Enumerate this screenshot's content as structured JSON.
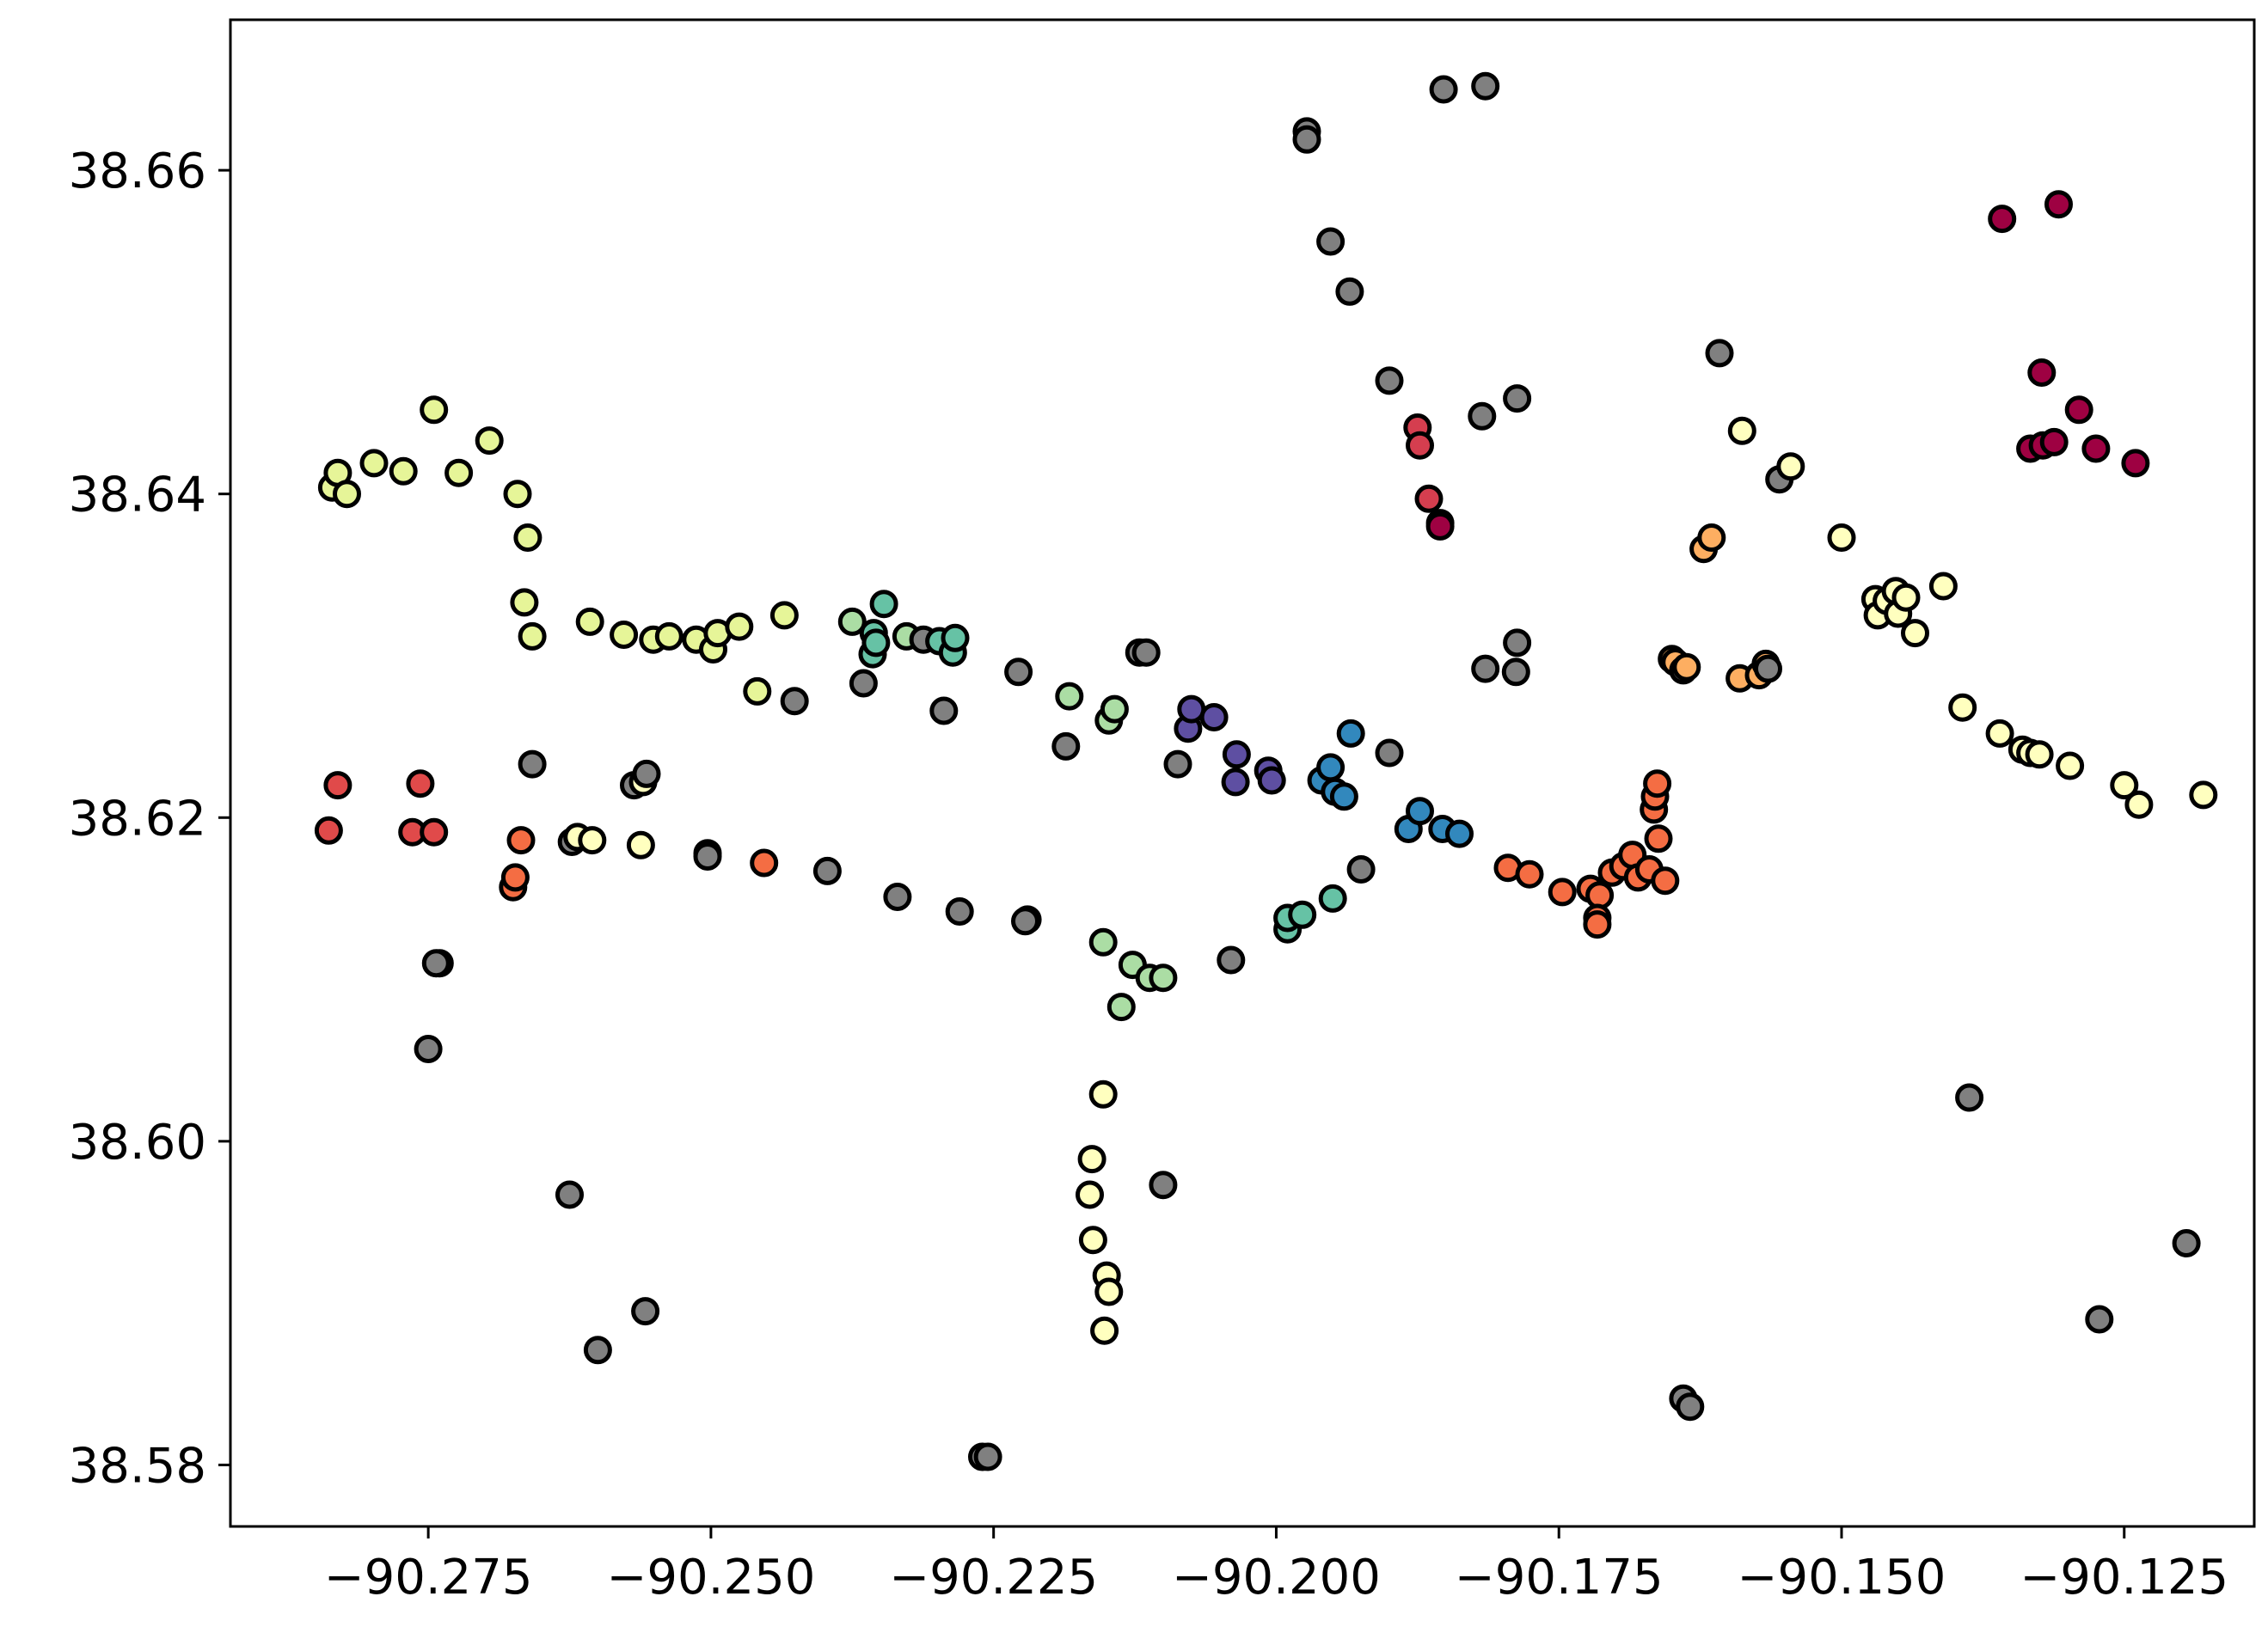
{
  "chart_data": {
    "type": "scatter",
    "title": "",
    "xlabel": "",
    "ylabel": "",
    "xlim": [
      -90.2925,
      -90.1135
    ],
    "ylim": [
      38.5762,
      38.6693
    ],
    "xticks": [
      -90.275,
      -90.25,
      -90.225,
      -90.2,
      -90.175,
      -90.15,
      -90.125
    ],
    "xtick_labels": [
      "−90.275",
      "−90.250",
      "−90.225",
      "−90.200",
      "−90.175",
      "−90.150",
      "−90.125"
    ],
    "yticks": [
      38.58,
      38.6,
      38.62,
      38.64,
      38.66
    ],
    "ytick_labels": [
      "38.58",
      "38.60",
      "38.62",
      "38.64",
      "38.66"
    ],
    "grid": false,
    "legend": "none",
    "marker_edge_color": "#000000",
    "colors": {
      "gray": "#808080",
      "darkred": "#9e0142",
      "crimson": "#d53e4f",
      "red": "#e04a4a",
      "orange": "#f46d43",
      "lightorange": "#fdae61",
      "paleyellow": "#fee08b",
      "cream": "#ffffbf",
      "yellowgreen": "#e6f598",
      "lightgreen": "#abdda4",
      "teal": "#66c2a5",
      "blue": "#3288bd",
      "indigo": "#5e4fa2"
    },
    "points": [
      {
        "x": -90.2835,
        "y": 38.6404,
        "c": "yellowgreen"
      },
      {
        "x": -90.283,
        "y": 38.6413,
        "c": "yellowgreen"
      },
      {
        "x": -90.2822,
        "y": 38.64,
        "c": "yellowgreen"
      },
      {
        "x": -90.2798,
        "y": 38.6419,
        "c": "yellowgreen"
      },
      {
        "x": -90.2772,
        "y": 38.6414,
        "c": "yellowgreen"
      },
      {
        "x": -90.2745,
        "y": 38.6452,
        "c": "yellowgreen"
      },
      {
        "x": -90.2723,
        "y": 38.6413,
        "c": "yellowgreen"
      },
      {
        "x": -90.2696,
        "y": 38.6433,
        "c": "yellowgreen"
      },
      {
        "x": -90.2671,
        "y": 38.64,
        "c": "yellowgreen"
      },
      {
        "x": -90.2665,
        "y": 38.6333,
        "c": "yellowgreen"
      },
      {
        "x": -90.2662,
        "y": 38.6373,
        "c": "yellowgreen"
      },
      {
        "x": -90.2658,
        "y": 38.6312,
        "c": "yellowgreen"
      },
      {
        "x": -90.2607,
        "y": 38.6321,
        "c": "yellowgreen"
      },
      {
        "x": -90.2577,
        "y": 38.6313,
        "c": "yellowgreen"
      },
      {
        "x": -90.2551,
        "y": 38.631,
        "c": "yellowgreen"
      },
      {
        "x": -90.2537,
        "y": 38.6312,
        "c": "yellowgreen"
      },
      {
        "x": -90.2513,
        "y": 38.631,
        "c": "yellowgreen"
      },
      {
        "x": -90.2498,
        "y": 38.6304,
        "c": "yellowgreen"
      },
      {
        "x": -90.2494,
        "y": 38.6314,
        "c": "yellowgreen"
      },
      {
        "x": -90.2475,
        "y": 38.6318,
        "c": "yellowgreen"
      },
      {
        "x": -90.2459,
        "y": 38.6278,
        "c": "yellowgreen"
      },
      {
        "x": -90.2435,
        "y": 38.6325,
        "c": "yellowgreen"
      },
      {
        "x": -90.2426,
        "y": 38.6272,
        "c": "gray"
      },
      {
        "x": -90.2375,
        "y": 38.6321,
        "c": "lightgreen"
      },
      {
        "x": -90.2365,
        "y": 38.6283,
        "c": "gray"
      },
      {
        "x": -90.2357,
        "y": 38.6301,
        "c": "teal"
      },
      {
        "x": -90.2356,
        "y": 38.6314,
        "c": "teal"
      },
      {
        "x": -90.2354,
        "y": 38.6308,
        "c": "teal"
      },
      {
        "x": -90.2347,
        "y": 38.6332,
        "c": "teal"
      },
      {
        "x": -90.2327,
        "y": 38.6312,
        "c": "lightgreen"
      },
      {
        "x": -90.2312,
        "y": 38.631,
        "c": "gray"
      },
      {
        "x": -90.2298,
        "y": 38.6309,
        "c": "teal"
      },
      {
        "x": -90.2286,
        "y": 38.6302,
        "c": "teal"
      },
      {
        "x": -90.2284,
        "y": 38.6311,
        "c": "teal"
      },
      {
        "x": -90.2294,
        "y": 38.6266,
        "c": "gray"
      },
      {
        "x": -90.2228,
        "y": 38.629,
        "c": "gray"
      },
      {
        "x": -90.2183,
        "y": 38.6275,
        "c": "lightgreen"
      },
      {
        "x": -90.2186,
        "y": 38.6244,
        "c": "gray"
      },
      {
        "x": -90.2148,
        "y": 38.626,
        "c": "lightgreen"
      },
      {
        "x": -90.2143,
        "y": 38.6267,
        "c": "lightgreen"
      },
      {
        "x": -90.2121,
        "y": 38.6302,
        "c": "gray"
      },
      {
        "x": -90.2115,
        "y": 38.6302,
        "c": "gray"
      },
      {
        "x": -90.2087,
        "y": 38.6233,
        "c": "gray"
      },
      {
        "x": -90.2078,
        "y": 38.6255,
        "c": "indigo"
      },
      {
        "x": -90.2075,
        "y": 38.6267,
        "c": "indigo"
      },
      {
        "x": -90.2055,
        "y": 38.6262,
        "c": "indigo"
      },
      {
        "x": -90.2036,
        "y": 38.6222,
        "c": "indigo"
      },
      {
        "x": -90.2035,
        "y": 38.6239,
        "c": "indigo"
      },
      {
        "x": -90.2007,
        "y": 38.6229,
        "c": "indigo"
      },
      {
        "x": -90.2004,
        "y": 38.6223,
        "c": "indigo"
      },
      {
        "x": -90.196,
        "y": 38.6223,
        "c": "blue"
      },
      {
        "x": -90.1952,
        "y": 38.6231,
        "c": "blue"
      },
      {
        "x": -90.1948,
        "y": 38.6216,
        "c": "blue"
      },
      {
        "x": -90.194,
        "y": 38.6213,
        "c": "blue"
      },
      {
        "x": -90.1934,
        "y": 38.6252,
        "c": "blue"
      },
      {
        "x": -90.19,
        "y": 38.624,
        "c": "gray"
      },
      {
        "x": -90.1883,
        "y": 38.6193,
        "c": "blue"
      },
      {
        "x": -90.1873,
        "y": 38.6204,
        "c": "blue"
      },
      {
        "x": -90.1853,
        "y": 38.6193,
        "c": "blue"
      },
      {
        "x": -90.1838,
        "y": 38.619,
        "c": "blue"
      },
      {
        "x": -90.2838,
        "y": 38.6192,
        "c": "red"
      },
      {
        "x": -90.283,
        "y": 38.622,
        "c": "red"
      },
      {
        "x": -90.2757,
        "y": 38.6221,
        "c": "red"
      },
      {
        "x": -90.2764,
        "y": 38.6191,
        "c": "red"
      },
      {
        "x": -90.2745,
        "y": 38.6191,
        "c": "red"
      },
      {
        "x": -90.274,
        "y": 38.611,
        "c": "gray"
      },
      {
        "x": -90.2743,
        "y": 38.611,
        "c": "gray"
      },
      {
        "x": -90.275,
        "y": 38.6057,
        "c": "gray"
      },
      {
        "x": -90.2675,
        "y": 38.6157,
        "c": "orange"
      },
      {
        "x": -90.2673,
        "y": 38.6163,
        "c": "orange"
      },
      {
        "x": -90.2668,
        "y": 38.6186,
        "c": "orange"
      },
      {
        "x": -90.2658,
        "y": 38.6233,
        "c": "gray"
      },
      {
        "x": -90.2623,
        "y": 38.6185,
        "c": "gray"
      },
      {
        "x": -90.2618,
        "y": 38.6188,
        "c": "cream"
      },
      {
        "x": -90.2605,
        "y": 38.6186,
        "c": "cream"
      },
      {
        "x": -90.2568,
        "y": 38.622,
        "c": "gray"
      },
      {
        "x": -90.256,
        "y": 38.6222,
        "c": "cream"
      },
      {
        "x": -90.2557,
        "y": 38.6227,
        "c": "gray"
      },
      {
        "x": -90.2562,
        "y": 38.6183,
        "c": "cream"
      },
      {
        "x": -90.2503,
        "y": 38.6178,
        "c": "orange"
      },
      {
        "x": -90.2503,
        "y": 38.6176,
        "c": "gray"
      },
      {
        "x": -90.2453,
        "y": 38.6172,
        "c": "orange"
      },
      {
        "x": -90.2397,
        "y": 38.6167,
        "c": "gray"
      },
      {
        "x": -90.2335,
        "y": 38.6151,
        "c": "gray"
      },
      {
        "x": -90.228,
        "y": 38.6142,
        "c": "gray"
      },
      {
        "x": -90.222,
        "y": 38.6137,
        "c": "gray"
      },
      {
        "x": -90.2222,
        "y": 38.6136,
        "c": "gray"
      },
      {
        "x": -90.2153,
        "y": 38.6123,
        "c": "lightgreen"
      },
      {
        "x": -90.2137,
        "y": 38.6083,
        "c": "lightgreen"
      },
      {
        "x": -90.2127,
        "y": 38.6109,
        "c": "lightgreen"
      },
      {
        "x": -90.2112,
        "y": 38.6101,
        "c": "lightgreen"
      },
      {
        "x": -90.21,
        "y": 38.6101,
        "c": "lightgreen"
      },
      {
        "x": -90.204,
        "y": 38.6112,
        "c": "gray"
      },
      {
        "x": -90.199,
        "y": 38.6131,
        "c": "teal"
      },
      {
        "x": -90.199,
        "y": 38.6138,
        "c": "teal"
      },
      {
        "x": -90.1977,
        "y": 38.614,
        "c": "teal"
      },
      {
        "x": -90.195,
        "y": 38.615,
        "c": "teal"
      },
      {
        "x": -90.1925,
        "y": 38.6168,
        "c": "gray"
      },
      {
        "x": -90.1795,
        "y": 38.6169,
        "c": "orange"
      },
      {
        "x": -90.1776,
        "y": 38.6165,
        "c": "orange"
      },
      {
        "x": -90.1747,
        "y": 38.6154,
        "c": "orange"
      },
      {
        "x": -90.1722,
        "y": 38.6156,
        "c": "orange"
      },
      {
        "x": -90.1714,
        "y": 38.6152,
        "c": "orange"
      },
      {
        "x": -90.1716,
        "y": 38.6138,
        "c": "orange"
      },
      {
        "x": -90.1716,
        "y": 38.6134,
        "c": "orange"
      },
      {
        "x": -90.1703,
        "y": 38.6166,
        "c": "orange"
      },
      {
        "x": -90.1693,
        "y": 38.617,
        "c": "orange"
      },
      {
        "x": -90.1685,
        "y": 38.6177,
        "c": "orange"
      },
      {
        "x": -90.168,
        "y": 38.6163,
        "c": "orange"
      },
      {
        "x": -90.167,
        "y": 38.6168,
        "c": "orange"
      },
      {
        "x": -90.1656,
        "y": 38.6161,
        "c": "orange"
      },
      {
        "x": -90.1662,
        "y": 38.6187,
        "c": "orange"
      },
      {
        "x": -90.1666,
        "y": 38.6205,
        "c": "orange"
      },
      {
        "x": -90.1665,
        "y": 38.6213,
        "c": "orange"
      },
      {
        "x": -90.1663,
        "y": 38.6221,
        "c": "orange"
      },
      {
        "x": -90.165,
        "y": 38.6298,
        "c": "lightorange"
      },
      {
        "x": -90.1647,
        "y": 38.6296,
        "c": "lightorange"
      },
      {
        "x": -90.164,
        "y": 38.6291,
        "c": "gray"
      },
      {
        "x": -90.1637,
        "y": 38.6293,
        "c": "lightorange"
      },
      {
        "x": -90.159,
        "y": 38.6286,
        "c": "lightorange"
      },
      {
        "x": -90.1573,
        "y": 38.6288,
        "c": "lightorange"
      },
      {
        "x": -90.1567,
        "y": 38.6295,
        "c": "lightorange"
      },
      {
        "x": -90.1565,
        "y": 38.6292,
        "c": "gray"
      },
      {
        "x": -90.1622,
        "y": 38.6366,
        "c": "lightorange"
      },
      {
        "x": -90.1615,
        "y": 38.6373,
        "c": "lightorange"
      },
      {
        "x": -90.1608,
        "y": 38.6487,
        "c": "gray"
      },
      {
        "x": -90.1588,
        "y": 38.6439,
        "c": "cream"
      },
      {
        "x": -90.1555,
        "y": 38.6409,
        "c": "gray"
      },
      {
        "x": -90.1545,
        "y": 38.6417,
        "c": "cream"
      },
      {
        "x": -90.15,
        "y": 38.6373,
        "c": "cream"
      },
      {
        "x": -90.147,
        "y": 38.6335,
        "c": "cream"
      },
      {
        "x": -90.1468,
        "y": 38.6325,
        "c": "cream"
      },
      {
        "x": -90.146,
        "y": 38.6334,
        "c": "cream"
      },
      {
        "x": -90.1452,
        "y": 38.634,
        "c": "cream"
      },
      {
        "x": -90.145,
        "y": 38.6326,
        "c": "cream"
      },
      {
        "x": -90.1443,
        "y": 38.6336,
        "c": "cream"
      },
      {
        "x": -90.1435,
        "y": 38.6314,
        "c": "cream"
      },
      {
        "x": -90.141,
        "y": 38.6343,
        "c": "cream"
      },
      {
        "x": -90.1393,
        "y": 38.6268,
        "c": "cream"
      },
      {
        "x": -90.136,
        "y": 38.6252,
        "c": "cream"
      },
      {
        "x": -90.134,
        "y": 38.6242,
        "c": "cream"
      },
      {
        "x": -90.1333,
        "y": 38.624,
        "c": "cream"
      },
      {
        "x": -90.1325,
        "y": 38.6239,
        "c": "cream"
      },
      {
        "x": -90.1298,
        "y": 38.6232,
        "c": "cream"
      },
      {
        "x": -90.125,
        "y": 38.622,
        "c": "cream"
      },
      {
        "x": -90.1237,
        "y": 38.6208,
        "c": "cream"
      },
      {
        "x": -90.118,
        "y": 38.6214,
        "c": "cream"
      },
      {
        "x": -90.1358,
        "y": 38.657,
        "c": "darkred"
      },
      {
        "x": -90.1308,
        "y": 38.6579,
        "c": "darkred"
      },
      {
        "x": -90.1323,
        "y": 38.6475,
        "c": "darkred"
      },
      {
        "x": -90.129,
        "y": 38.6452,
        "c": "darkred"
      },
      {
        "x": -90.1333,
        "y": 38.6428,
        "c": "darkred"
      },
      {
        "x": -90.1322,
        "y": 38.643,
        "c": "darkred"
      },
      {
        "x": -90.1312,
        "y": 38.6432,
        "c": "darkred"
      },
      {
        "x": -90.1275,
        "y": 38.6428,
        "c": "darkred"
      },
      {
        "x": -90.124,
        "y": 38.6419,
        "c": "darkred"
      },
      {
        "x": -90.1973,
        "y": 38.6624,
        "c": "gray"
      },
      {
        "x": -90.1973,
        "y": 38.6619,
        "c": "gray"
      },
      {
        "x": -90.1852,
        "y": 38.665,
        "c": "gray"
      },
      {
        "x": -90.1815,
        "y": 38.6652,
        "c": "gray"
      },
      {
        "x": -90.1952,
        "y": 38.6556,
        "c": "gray"
      },
      {
        "x": -90.1935,
        "y": 38.6525,
        "c": "gray"
      },
      {
        "x": -90.19,
        "y": 38.647,
        "c": "gray"
      },
      {
        "x": -90.1818,
        "y": 38.6448,
        "c": "gray"
      },
      {
        "x": -90.1787,
        "y": 38.6459,
        "c": "gray"
      },
      {
        "x": -90.1875,
        "y": 38.6441,
        "c": "crimson"
      },
      {
        "x": -90.1873,
        "y": 38.643,
        "c": "crimson"
      },
      {
        "x": -90.1865,
        "y": 38.6397,
        "c": "crimson"
      },
      {
        "x": -90.1855,
        "y": 38.6382,
        "c": "darkred"
      },
      {
        "x": -90.1855,
        "y": 38.638,
        "c": "darkred"
      },
      {
        "x": -90.1787,
        "y": 38.6308,
        "c": "gray"
      },
      {
        "x": -90.1815,
        "y": 38.6292,
        "c": "gray"
      },
      {
        "x": -90.1788,
        "y": 38.629,
        "c": "gray"
      },
      {
        "x": -90.164,
        "y": 38.5841,
        "c": "gray"
      },
      {
        "x": -90.1634,
        "y": 38.5836,
        "c": "gray"
      },
      {
        "x": -90.1387,
        "y": 38.6027,
        "c": "gray"
      },
      {
        "x": -90.1272,
        "y": 38.589,
        "c": "gray"
      },
      {
        "x": -90.1195,
        "y": 38.5937,
        "c": "gray"
      },
      {
        "x": -90.2153,
        "y": 38.6029,
        "c": "cream"
      },
      {
        "x": -90.2163,
        "y": 38.5989,
        "c": "cream"
      },
      {
        "x": -90.2165,
        "y": 38.5967,
        "c": "cream"
      },
      {
        "x": -90.2162,
        "y": 38.5939,
        "c": "cream"
      },
      {
        "x": -90.215,
        "y": 38.5917,
        "c": "cream"
      },
      {
        "x": -90.2148,
        "y": 38.5907,
        "c": "cream"
      },
      {
        "x": -90.2152,
        "y": 38.5883,
        "c": "cream"
      },
      {
        "x": -90.21,
        "y": 38.5973,
        "c": "gray"
      },
      {
        "x": -90.2625,
        "y": 38.5967,
        "c": "gray"
      },
      {
        "x": -90.26,
        "y": 38.5871,
        "c": "gray"
      },
      {
        "x": -90.2558,
        "y": 38.5895,
        "c": "gray"
      },
      {
        "x": -90.226,
        "y": 38.5805,
        "c": "gray"
      },
      {
        "x": -90.2255,
        "y": 38.5805,
        "c": "gray"
      }
    ]
  }
}
